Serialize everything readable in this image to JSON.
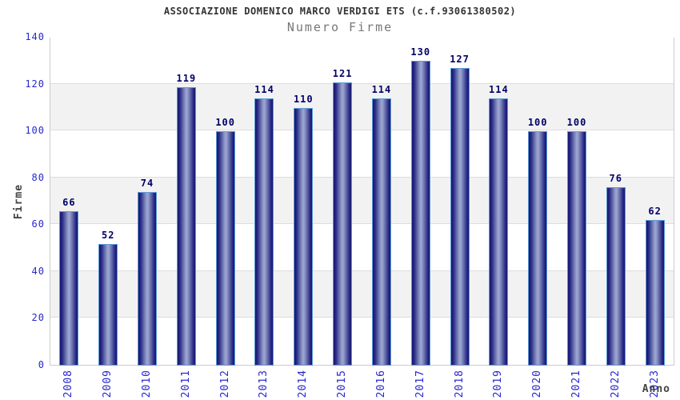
{
  "chart": {
    "title": "ASSOCIAZIONE DOMENICO MARCO VERDIGI ETS (c.f.93061380502)",
    "subtitle": "Numero Firme",
    "ylabel": "Firme",
    "xlabel": "Anno"
  },
  "chart_data": {
    "type": "bar",
    "title": "ASSOCIAZIONE DOMENICO MARCO VERDIGI ETS (c.f.93061380502)",
    "subtitle": "Numero Firme",
    "xlabel": "Anno",
    "ylabel": "Firme",
    "categories": [
      "2008",
      "2009",
      "2010",
      "2011",
      "2012",
      "2013",
      "2014",
      "2015",
      "2016",
      "2017",
      "2018",
      "2019",
      "2020",
      "2021",
      "2022",
      "2023"
    ],
    "values": [
      66,
      52,
      74,
      119,
      100,
      114,
      110,
      121,
      114,
      130,
      127,
      114,
      100,
      100,
      76,
      62
    ],
    "ylim": [
      0,
      140
    ],
    "yticks": [
      0,
      20,
      40,
      60,
      80,
      100,
      120,
      140
    ],
    "grid": true,
    "legend": false,
    "data_labels": true,
    "x_tick_rotation_deg": 90
  },
  "colors": {
    "tick_label": "#2727cf",
    "value_label": "#000066",
    "title": "#333333",
    "subtitle": "#777777",
    "gridline": "#dddddd",
    "band_gray": "#f2f2f2",
    "band_white": "#ffffff",
    "plot_border": "#cccccc",
    "bar_dark": "#15156b",
    "bar_light": "#9aa3d0",
    "bar_outline": "#5b9bd5"
  }
}
